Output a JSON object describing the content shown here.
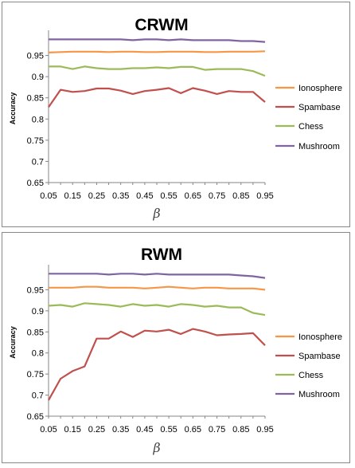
{
  "chart_data": [
    {
      "type": "line",
      "title": "CRWM",
      "xlabel": "β",
      "ylabel": "Accuracy",
      "ylim": [
        0.65,
        1.0
      ],
      "yticks": [
        "0.65",
        "0.7",
        "0.75",
        "0.8",
        "0.85",
        "0.9",
        "0.95"
      ],
      "x_tick_labels": [
        "0.05",
        "0.15",
        "0.25",
        "0.35",
        "0.45",
        "0.55",
        "0.65",
        "0.75",
        "0.85",
        "0.95"
      ],
      "x": [
        0.05,
        0.1,
        0.15,
        0.2,
        0.25,
        0.3,
        0.35,
        0.4,
        0.45,
        0.5,
        0.55,
        0.6,
        0.65,
        0.7,
        0.75,
        0.8,
        0.85,
        0.9,
        0.95
      ],
      "legend_position": "right",
      "series": [
        {
          "name": "Ionosphere",
          "color": "#f79646",
          "values": [
            0.957,
            0.958,
            0.959,
            0.959,
            0.959,
            0.958,
            0.959,
            0.959,
            0.958,
            0.958,
            0.959,
            0.959,
            0.959,
            0.958,
            0.958,
            0.959,
            0.959,
            0.959,
            0.96
          ]
        },
        {
          "name": "Spambase",
          "color": "#c0504d",
          "values": [
            0.828,
            0.869,
            0.864,
            0.866,
            0.872,
            0.872,
            0.867,
            0.859,
            0.866,
            0.869,
            0.873,
            0.861,
            0.873,
            0.867,
            0.859,
            0.866,
            0.864,
            0.864,
            0.84
          ]
        },
        {
          "name": "Chess",
          "color": "#9bbb59",
          "values": [
            0.924,
            0.924,
            0.918,
            0.924,
            0.92,
            0.918,
            0.918,
            0.92,
            0.92,
            0.922,
            0.92,
            0.923,
            0.923,
            0.916,
            0.918,
            0.918,
            0.918,
            0.913,
            0.902
          ]
        },
        {
          "name": "Mushroom",
          "color": "#8064a2",
          "values": [
            0.988,
            0.988,
            0.988,
            0.988,
            0.988,
            0.988,
            0.988,
            0.986,
            0.988,
            0.988,
            0.986,
            0.988,
            0.986,
            0.986,
            0.986,
            0.986,
            0.984,
            0.984,
            0.982
          ]
        }
      ]
    },
    {
      "type": "line",
      "title": "RWM",
      "xlabel": "β",
      "ylabel": "Accuracy",
      "ylim": [
        0.65,
        1.0
      ],
      "yticks": [
        "0.65",
        "0.7",
        "0.75",
        "0.8",
        "0.85",
        "0.9",
        "0.95"
      ],
      "x_tick_labels": [
        "0.05",
        "0.15",
        "0.25",
        "0.35",
        "0.45",
        "0.55",
        "0.65",
        "0.75",
        "0.85",
        "0.95"
      ],
      "x": [
        0.05,
        0.1,
        0.15,
        0.2,
        0.25,
        0.3,
        0.35,
        0.4,
        0.45,
        0.5,
        0.55,
        0.6,
        0.65,
        0.7,
        0.75,
        0.8,
        0.85,
        0.9,
        0.95
      ],
      "legend_position": "right",
      "series": [
        {
          "name": "Ionosphere",
          "color": "#f79646",
          "values": [
            0.955,
            0.955,
            0.955,
            0.957,
            0.957,
            0.955,
            0.955,
            0.955,
            0.953,
            0.955,
            0.957,
            0.955,
            0.953,
            0.955,
            0.955,
            0.953,
            0.953,
            0.953,
            0.95
          ]
        },
        {
          "name": "Spambase",
          "color": "#c0504d",
          "values": [
            0.688,
            0.739,
            0.757,
            0.768,
            0.834,
            0.834,
            0.851,
            0.838,
            0.853,
            0.851,
            0.855,
            0.845,
            0.857,
            0.851,
            0.842,
            0.844,
            0.845,
            0.847,
            0.818
          ]
        },
        {
          "name": "Chess",
          "color": "#9bbb59",
          "values": [
            0.912,
            0.914,
            0.91,
            0.918,
            0.916,
            0.914,
            0.91,
            0.916,
            0.912,
            0.914,
            0.91,
            0.916,
            0.914,
            0.91,
            0.912,
            0.908,
            0.908,
            0.895,
            0.89
          ]
        },
        {
          "name": "Mushroom",
          "color": "#8064a2",
          "values": [
            0.988,
            0.988,
            0.988,
            0.988,
            0.988,
            0.986,
            0.988,
            0.988,
            0.986,
            0.988,
            0.986,
            0.986,
            0.986,
            0.986,
            0.986,
            0.986,
            0.984,
            0.982,
            0.978
          ]
        }
      ]
    }
  ]
}
